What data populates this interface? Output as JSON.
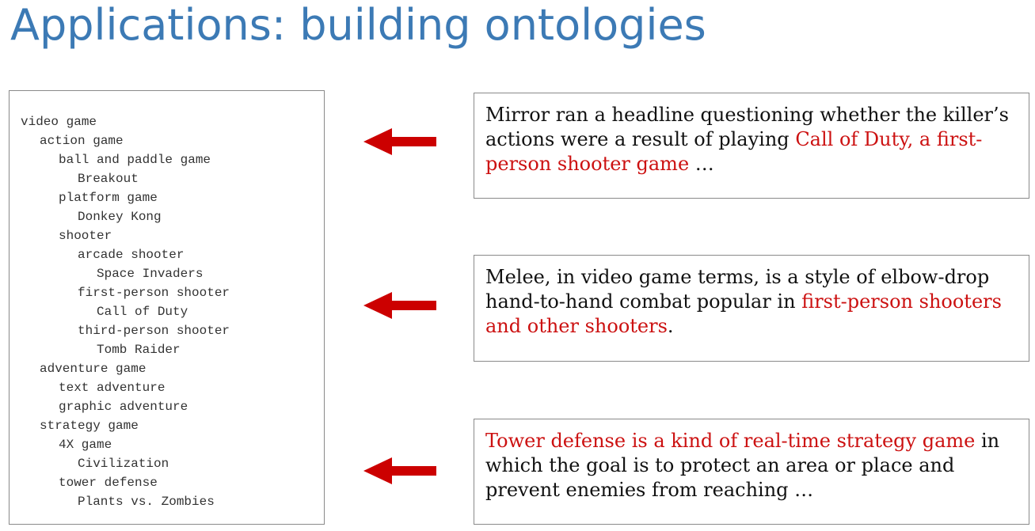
{
  "slide": {
    "title": "Applications: building ontologies"
  },
  "colors": {
    "title": "#3c7ab5",
    "highlight": "#cc1111",
    "arrow": "#cc0000",
    "border": "#8a8a8a"
  },
  "tree": [
    {
      "label": "video game",
      "depth": 0
    },
    {
      "label": "action game",
      "depth": 1
    },
    {
      "label": "ball and paddle game",
      "depth": 2
    },
    {
      "label": "Breakout",
      "depth": 3
    },
    {
      "label": "platform game",
      "depth": 2
    },
    {
      "label": "Donkey Kong",
      "depth": 3
    },
    {
      "label": "shooter",
      "depth": 2
    },
    {
      "label": "arcade shooter",
      "depth": 3
    },
    {
      "label": "Space Invaders",
      "depth": 4
    },
    {
      "label": "first-person shooter",
      "depth": 3
    },
    {
      "label": "Call of Duty",
      "depth": 4
    },
    {
      "label": "third-person shooter",
      "depth": 3
    },
    {
      "label": "Tomb Raider",
      "depth": 4
    },
    {
      "label": "adventure game",
      "depth": 1
    },
    {
      "label": "text adventure",
      "depth": 2
    },
    {
      "label": "graphic adventure",
      "depth": 2
    },
    {
      "label": "strategy game",
      "depth": 1
    },
    {
      "label": "4X game",
      "depth": 2
    },
    {
      "label": "Civilization",
      "depth": 3
    },
    {
      "label": "tower defense",
      "depth": 2
    },
    {
      "label": "Plants vs. Zombies",
      "depth": 3
    }
  ],
  "arrows": [
    {
      "icon": "left-arrow-icon"
    },
    {
      "icon": "left-arrow-icon"
    },
    {
      "icon": "left-arrow-icon"
    }
  ],
  "quotes": [
    {
      "text_before": "Mirror ran a headline questioning whether the killer’s actions were a result of playing ",
      "highlight": "Call of Duty, a first-person shooter game",
      "text_after": " …"
    },
    {
      "text_before": "Melee, in video game terms, is a style of elbow-drop hand-to-hand combat popular in ",
      "highlight": "first-person shooters and other shooters",
      "text_after": "."
    },
    {
      "text_before": "",
      "highlight": "Tower defense is a kind of real-time strategy game",
      "text_after": " in which the goal is to protect an area or place and prevent enemies from reaching …"
    }
  ]
}
